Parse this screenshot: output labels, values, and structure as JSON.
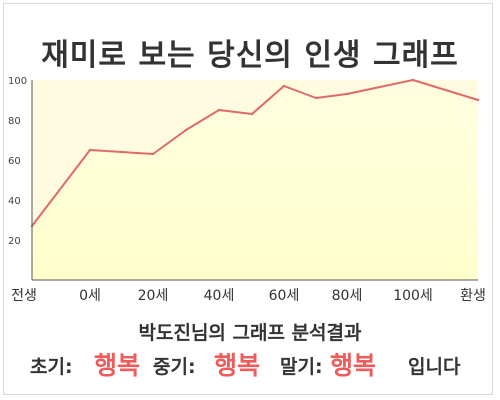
{
  "title": "재미로 보는 당신의 인생 그래프",
  "colors": {
    "line": "#e06a6a",
    "fill": "#ffffcc",
    "plot_bg": "#fffbe0",
    "highlight": "#f05b5b",
    "text": "#333333"
  },
  "chart_data": {
    "type": "area",
    "x_tick_labels": [
      "전생",
      "0세",
      "20세",
      "40세",
      "60세",
      "80세",
      "100세",
      "환생"
    ],
    "y_ticks": [
      20,
      40,
      60,
      80,
      100
    ],
    "ylim": [
      0,
      100
    ],
    "grid": false,
    "legend": "none",
    "points": [
      {
        "x": "전생",
        "y": 27
      },
      {
        "x": "0세",
        "y": 65
      },
      {
        "x": "10세",
        "y": 64
      },
      {
        "x": "20세",
        "y": 63
      },
      {
        "x": "30세",
        "y": 75
      },
      {
        "x": "40세",
        "y": 85
      },
      {
        "x": "50세",
        "y": 83
      },
      {
        "x": "60세",
        "y": 97
      },
      {
        "x": "70세",
        "y": 91
      },
      {
        "x": "80세",
        "y": 93
      },
      {
        "x": "100세",
        "y": 100
      },
      {
        "x": "환생",
        "y": 90
      }
    ]
  },
  "analysis": {
    "heading": "박도진님의 그래프 분석결과",
    "early_label": "초기:",
    "early_value": "행복",
    "middle_label": "중기:",
    "middle_value": "행복",
    "late_label": "말기:",
    "late_value": "행복",
    "ending": "입니다"
  }
}
